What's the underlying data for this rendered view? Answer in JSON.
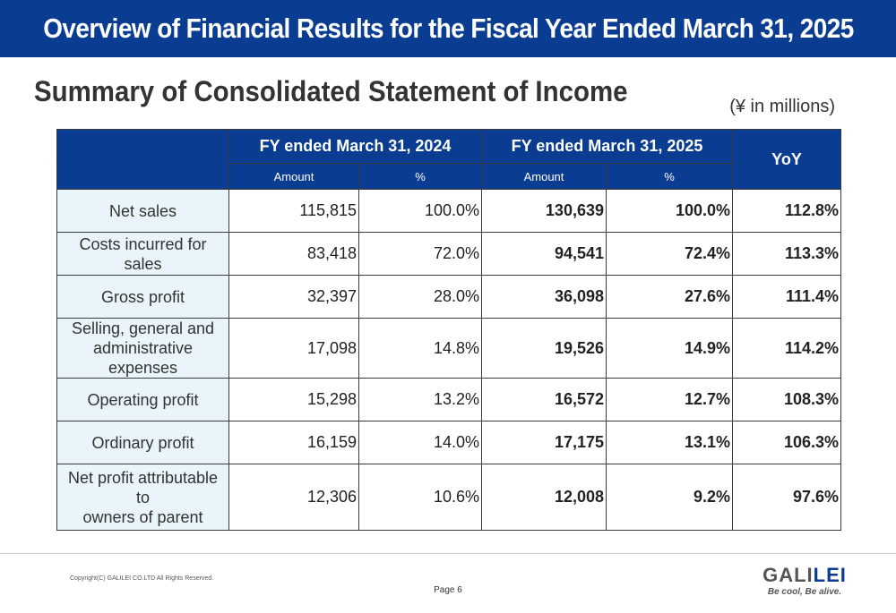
{
  "header": {
    "title": "Overview of Financial Results for the Fiscal Year Ended March 31, 2025"
  },
  "subtitle": "Summary of Consolidated Statement of Income",
  "unit_note": "(¥ in millions)",
  "table": {
    "periods": [
      "FY ended March 31, 2024",
      "FY ended March 31, 2025"
    ],
    "sub_headers": {
      "amount": "Amount",
      "percent": "%"
    },
    "yoy_header": "YoY",
    "rows": [
      {
        "label": "Net sales",
        "amount_2024": "115,815",
        "pct_2024": "100.0%",
        "amount_2025": "130,639",
        "pct_2025": "100.0%",
        "yoy": "112.8%"
      },
      {
        "label": "Costs incurred for sales",
        "amount_2024": "83,418",
        "pct_2024": "72.0%",
        "amount_2025": "94,541",
        "pct_2025": "72.4%",
        "yoy": "113.3%"
      },
      {
        "label": "Gross profit",
        "amount_2024": "32,397",
        "pct_2024": "28.0%",
        "amount_2025": "36,098",
        "pct_2025": "27.6%",
        "yoy": "111.4%"
      },
      {
        "label_line1": "Selling, general and",
        "label_line2": "administrative expenses",
        "amount_2024": "17,098",
        "pct_2024": "14.8%",
        "amount_2025": "19,526",
        "pct_2025": "14.9%",
        "yoy": "114.2%"
      },
      {
        "label": "Operating profit",
        "amount_2024": "15,298",
        "pct_2024": "13.2%",
        "amount_2025": "16,572",
        "pct_2025": "12.7%",
        "yoy": "108.3%"
      },
      {
        "label": "Ordinary profit",
        "amount_2024": "16,159",
        "pct_2024": "14.0%",
        "amount_2025": "17,175",
        "pct_2025": "13.1%",
        "yoy": "106.3%"
      },
      {
        "label_line1": "Net profit attributable to",
        "label_line2": "owners of parent",
        "amount_2024": "12,306",
        "pct_2024": "10.6%",
        "amount_2025": "12,008",
        "pct_2025": "9.2%",
        "yoy": "97.6%"
      }
    ]
  },
  "footer": {
    "copyright": "Copyright(C) GALILEI CO.LTD All Rights Reserved.",
    "page": "Page 6",
    "logo_name_part1": "GALI",
    "logo_name_part2": "LEI",
    "logo_tagline": "Be cool, Be alive."
  },
  "colors": {
    "brand_blue": "#0a3d91",
    "label_bg": "#eaf4fb"
  }
}
